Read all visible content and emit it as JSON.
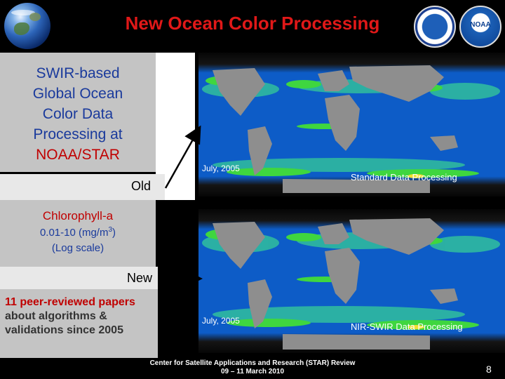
{
  "title": "New Ocean Color Processing",
  "left_panel": {
    "heading": "SWIR-based Global Ocean Color Data Processing at",
    "org": "NOAA/STAR"
  },
  "old_label": "Old",
  "legend": {
    "variable": "Chlorophyll-a",
    "range": "0.01-10 (mg/m",
    "range_sup": "3",
    "range_close": ")",
    "scale": "(Log scale)"
  },
  "new_label": "New",
  "papers": {
    "highlight": "11 peer-reviewed papers",
    "rest": " about algorithms & validations since 2005"
  },
  "maps": [
    {
      "date": "July, 2005",
      "caption": "Standard Data Processing"
    },
    {
      "date": "July, 2005",
      "caption": "NIR-SWIR Data Processing"
    }
  ],
  "footer": {
    "line1": "Center for Satellite Applications and Research (STAR) Review",
    "line2": "09 – 11 March 2010"
  },
  "page_number": "8",
  "logos": {
    "noaa_text": "NOAA"
  },
  "colors": {
    "title": "#e01818",
    "panel_text": "#1a3a9c",
    "accent_red": "#c00000",
    "panel_bg": "#c4c4c4"
  }
}
